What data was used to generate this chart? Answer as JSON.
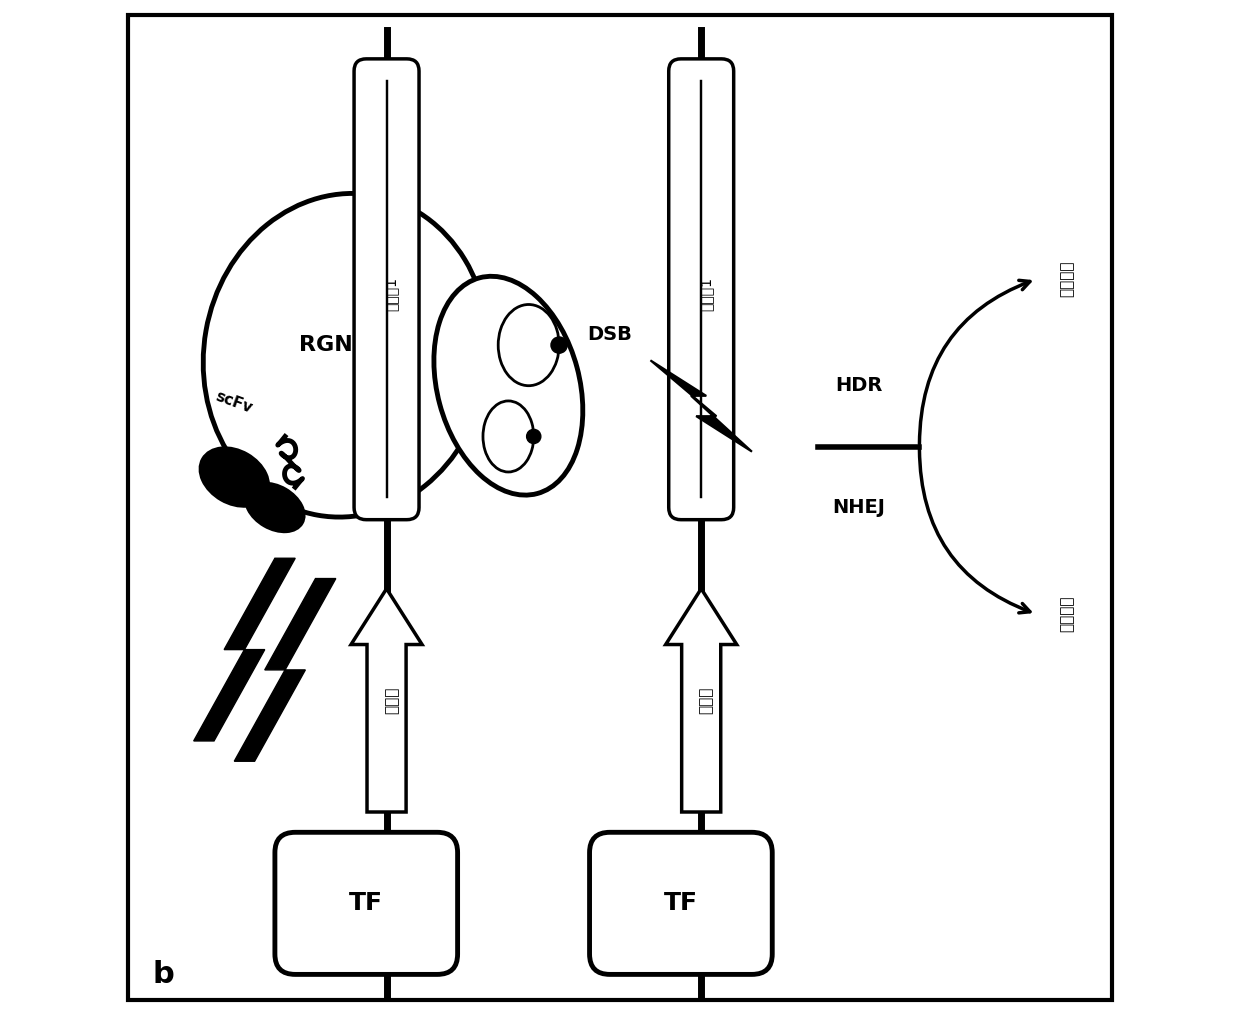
{
  "bg_color": "#ffffff",
  "border_color": "#000000",
  "line_color": "#000000",
  "label_b": "b",
  "label_RGN": "RGN",
  "label_scFv": "scFv",
  "label_DSB": "DSB",
  "label_NHEJ": "NHEJ",
  "label_HDR": "HDR",
  "label_exon1_1": "外显子1",
  "label_exon1_2": "外显子1",
  "label_promoter1": "启动子",
  "label_promoter2": "启动子",
  "label_TF1": "TF",
  "label_TF2": "TF",
  "label_gene_correction": "基因校正",
  "label_gene_knockout": "基因敲除"
}
